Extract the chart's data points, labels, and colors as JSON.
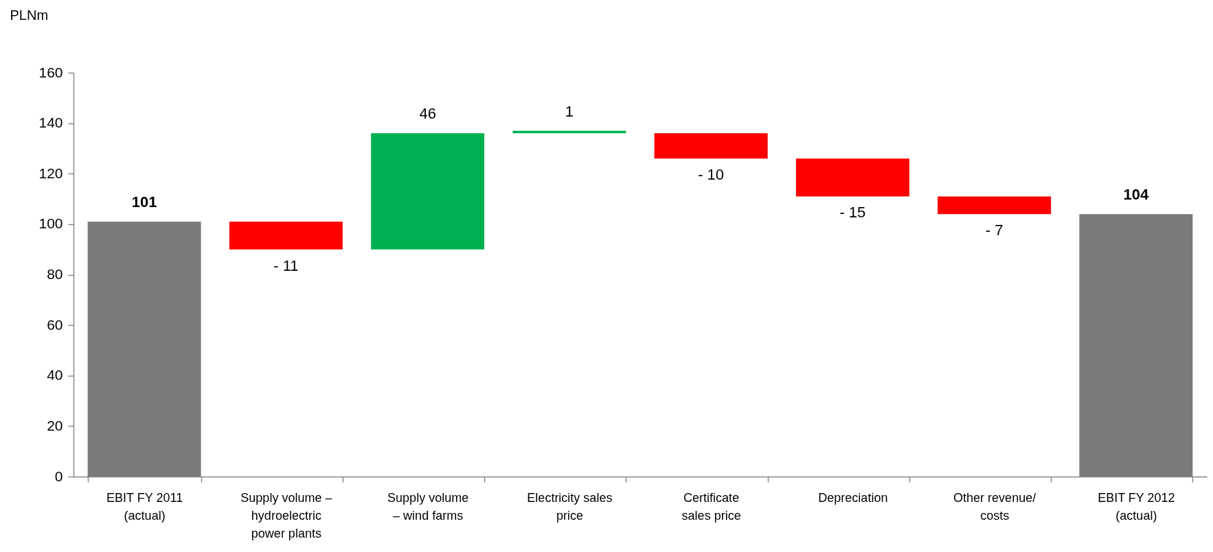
{
  "chart_data": {
    "type": "bar",
    "ylabel": "PLNm",
    "categories": [
      "EBIT FY 2011\n(actual)",
      "Supply volume –\nhydroelectric\npower plants",
      "Supply volume\n– wind farms",
      "Electricity sales\nprice",
      "Certificate\nsales price",
      "Depreciation",
      "Other revenue/\ncosts",
      "EBIT FY 2012\n(actual)"
    ],
    "values": [
      101,
      -11,
      46,
      1,
      -10,
      -15,
      -7,
      104
    ],
    "base": [
      0,
      101,
      90,
      136,
      136,
      126,
      111,
      0
    ],
    "colors": [
      "#7a7a7a",
      "#ff0000",
      "#00b050",
      "#00b050",
      "#ff0000",
      "#ff0000",
      "#ff0000",
      "#7a7a7a"
    ],
    "value_labels": [
      "101",
      "- 11",
      "46",
      "1",
      "- 10",
      "- 15",
      "- 7",
      "104"
    ],
    "ylim": [
      0,
      160
    ],
    "yticks": [
      0,
      20,
      40,
      60,
      80,
      100,
      120,
      140,
      160
    ],
    "grid": false
  }
}
